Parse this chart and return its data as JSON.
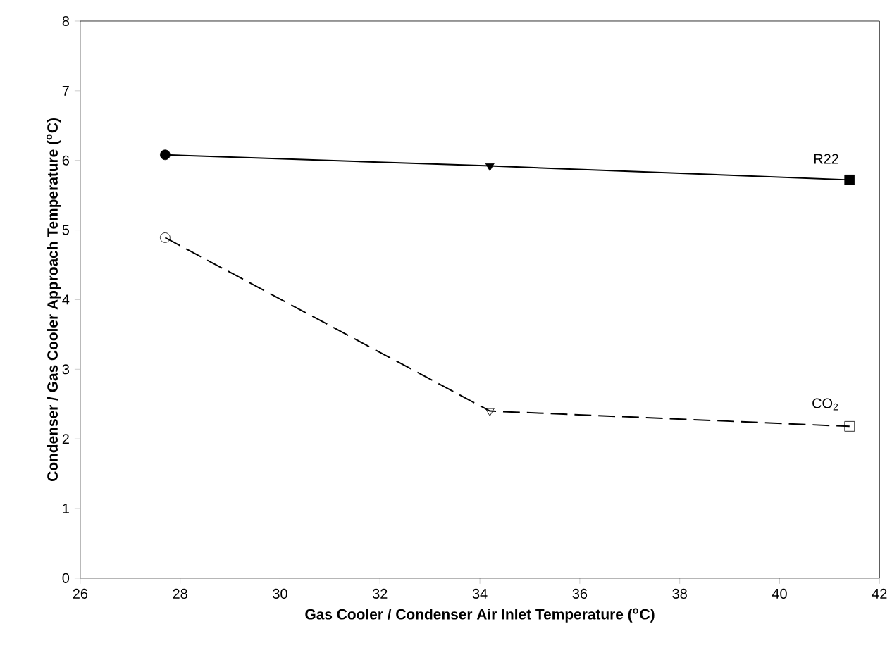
{
  "chart_data": {
    "type": "line",
    "xlabel": "Gas Cooler / Condenser Air Inlet Temperature ($^{o}$C)",
    "ylabel": "Condenser / Gas Cooler Approach Temperature ($^{o}$C)",
    "xlim": [
      26,
      42
    ],
    "xticks": [
      26,
      28,
      30,
      32,
      34,
      36,
      38,
      40,
      42
    ],
    "ylim": [
      0,
      8
    ],
    "yticks": [
      0,
      1,
      2,
      3,
      4,
      5,
      6,
      7,
      8
    ],
    "grid": false,
    "legend": false,
    "series": [
      {
        "name": "R22",
        "color": "#000000",
        "line_style": "solid",
        "marker": "circle",
        "x": [
          27.7,
          34.2,
          41.4
        ],
        "values": [
          6.08,
          5.92,
          5.72
        ]
      },
      {
        "name": "CO$_{2}$",
        "color": "#000000",
        "line_style": "dashed",
        "marker": "circle",
        "x": [
          27.7,
          34.2,
          41.4
        ],
        "values": [
          4.89,
          2.4,
          2.18
        ]
      }
    ]
  }
}
